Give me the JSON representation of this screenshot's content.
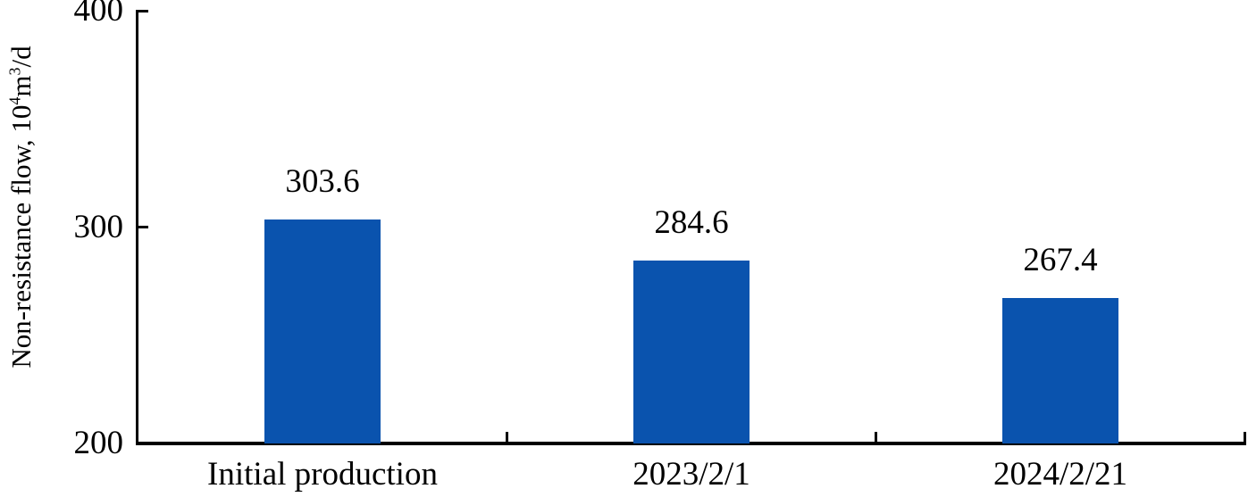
{
  "chart_data": {
    "type": "bar",
    "title": "",
    "xlabel": "",
    "ylabel": "Non-resistance flow, 10⁴m³/d",
    "ylabel_parts": {
      "prefix": "Non-resistance flow, 10",
      "sup1": "4",
      "mid": "m",
      "sup2": "3",
      "suffix": "/d"
    },
    "categories": [
      "Initial production",
      "2023/2/1",
      "2024/2/21"
    ],
    "values": [
      303.6,
      284.6,
      267.4
    ],
    "value_labels": [
      "303.6",
      "284.6",
      "267.4"
    ],
    "ylim": [
      200,
      400
    ],
    "yticks": [
      {
        "label": "400",
        "value": 400
      },
      {
        "label": "300",
        "value": 300
      },
      {
        "label": "200",
        "value": 200
      }
    ],
    "grid": false,
    "legend": null,
    "bar_color": "#0A53AE",
    "axis_color": "#000000",
    "text_color": "#000000",
    "background_color": "#FFFFFF"
  }
}
